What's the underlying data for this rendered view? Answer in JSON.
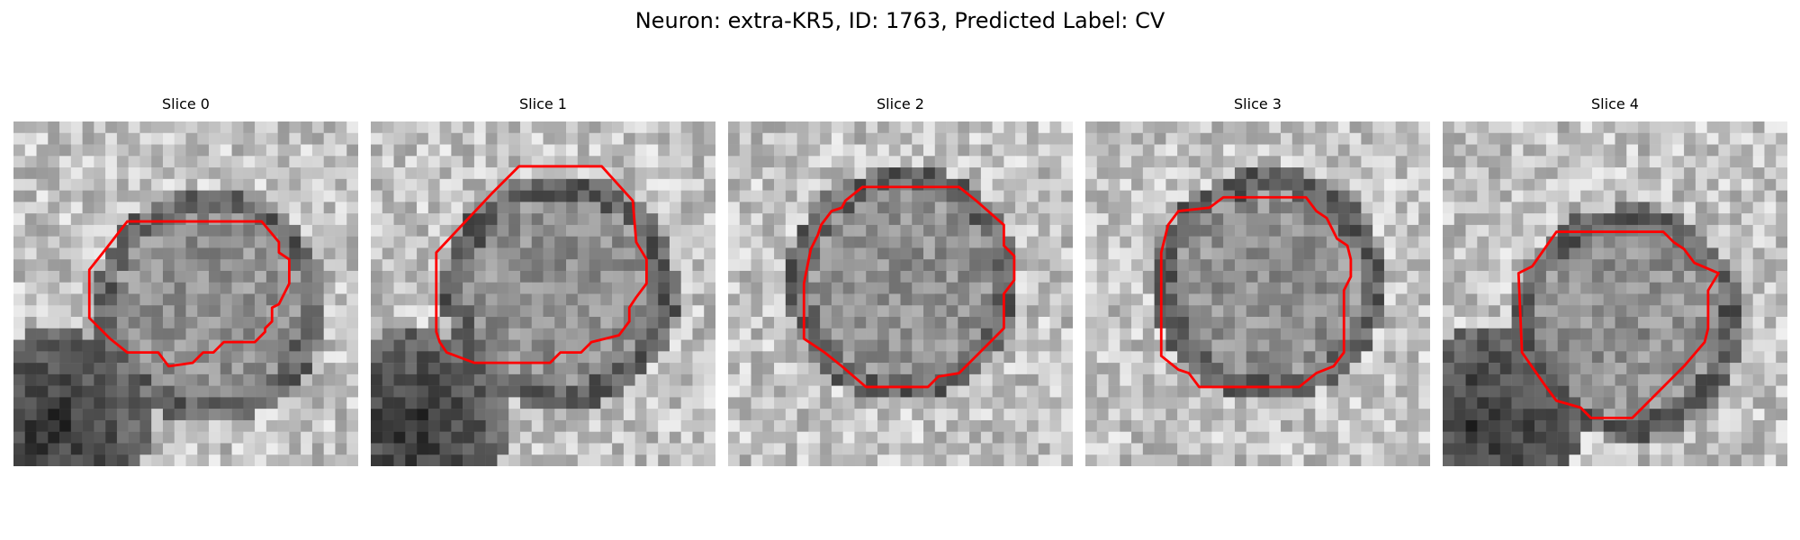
{
  "figure": {
    "title": "Neuron: extra-KR5, ID: 1763, Predicted Label: CV",
    "contour_color": "#ff0000",
    "image_colormap": "gray"
  },
  "panels": [
    {
      "title": "Slice 0",
      "seed": 11,
      "dark_lower_left": true,
      "contour": [
        [
          0.33,
          0.29
        ],
        [
          0.72,
          0.29
        ],
        [
          0.77,
          0.35
        ],
        [
          0.77,
          0.38
        ],
        [
          0.8,
          0.4
        ],
        [
          0.8,
          0.47
        ],
        [
          0.77,
          0.53
        ],
        [
          0.75,
          0.54
        ],
        [
          0.75,
          0.58
        ],
        [
          0.73,
          0.6
        ],
        [
          0.73,
          0.61
        ],
        [
          0.7,
          0.64
        ],
        [
          0.61,
          0.64
        ],
        [
          0.58,
          0.67
        ],
        [
          0.55,
          0.67
        ],
        [
          0.52,
          0.7
        ],
        [
          0.45,
          0.71
        ],
        [
          0.42,
          0.67
        ],
        [
          0.33,
          0.67
        ],
        [
          0.28,
          0.63
        ],
        [
          0.22,
          0.57
        ],
        [
          0.22,
          0.43
        ],
        [
          0.26,
          0.38
        ]
      ]
    },
    {
      "title": "Slice 1",
      "seed": 23,
      "dark_lower_left": true,
      "contour": [
        [
          0.43,
          0.13
        ],
        [
          0.67,
          0.13
        ],
        [
          0.76,
          0.23
        ],
        [
          0.77,
          0.35
        ],
        [
          0.8,
          0.4
        ],
        [
          0.8,
          0.47
        ],
        [
          0.77,
          0.51
        ],
        [
          0.75,
          0.54
        ],
        [
          0.75,
          0.58
        ],
        [
          0.72,
          0.62
        ],
        [
          0.64,
          0.64
        ],
        [
          0.61,
          0.67
        ],
        [
          0.55,
          0.67
        ],
        [
          0.52,
          0.7
        ],
        [
          0.3,
          0.7
        ],
        [
          0.22,
          0.67
        ],
        [
          0.2,
          0.64
        ],
        [
          0.19,
          0.61
        ],
        [
          0.19,
          0.38
        ],
        [
          0.35,
          0.21
        ]
      ]
    },
    {
      "title": "Slice 2",
      "seed": 37,
      "dark_lower_left": false,
      "contour": [
        [
          0.39,
          0.19
        ],
        [
          0.67,
          0.19
        ],
        [
          0.72,
          0.23
        ],
        [
          0.8,
          0.3
        ],
        [
          0.8,
          0.36
        ],
        [
          0.83,
          0.39
        ],
        [
          0.83,
          0.46
        ],
        [
          0.8,
          0.5
        ],
        [
          0.8,
          0.6
        ],
        [
          0.76,
          0.64
        ],
        [
          0.67,
          0.73
        ],
        [
          0.61,
          0.74
        ],
        [
          0.58,
          0.77
        ],
        [
          0.4,
          0.77
        ],
        [
          0.33,
          0.71
        ],
        [
          0.28,
          0.67
        ],
        [
          0.25,
          0.65
        ],
        [
          0.22,
          0.63
        ],
        [
          0.22,
          0.47
        ],
        [
          0.24,
          0.37
        ],
        [
          0.26,
          0.33
        ],
        [
          0.27,
          0.3
        ],
        [
          0.3,
          0.26
        ],
        [
          0.33,
          0.25
        ],
        [
          0.34,
          0.23
        ]
      ]
    },
    {
      "title": "Slice 3",
      "seed": 53,
      "dark_lower_left": false,
      "contour": [
        [
          0.4,
          0.22
        ],
        [
          0.64,
          0.22
        ],
        [
          0.67,
          0.26
        ],
        [
          0.7,
          0.28
        ],
        [
          0.73,
          0.34
        ],
        [
          0.76,
          0.36
        ],
        [
          0.77,
          0.4
        ],
        [
          0.77,
          0.45
        ],
        [
          0.75,
          0.49
        ],
        [
          0.75,
          0.67
        ],
        [
          0.72,
          0.71
        ],
        [
          0.67,
          0.73
        ],
        [
          0.62,
          0.77
        ],
        [
          0.33,
          0.77
        ],
        [
          0.3,
          0.73
        ],
        [
          0.27,
          0.72
        ],
        [
          0.22,
          0.68
        ],
        [
          0.22,
          0.38
        ],
        [
          0.24,
          0.3
        ],
        [
          0.27,
          0.26
        ],
        [
          0.36,
          0.25
        ]
      ]
    },
    {
      "title": "Slice 4",
      "seed": 71,
      "dark_lower_left": true,
      "contour": [
        [
          0.33,
          0.32
        ],
        [
          0.64,
          0.32
        ],
        [
          0.67,
          0.35
        ],
        [
          0.7,
          0.37
        ],
        [
          0.73,
          0.41
        ],
        [
          0.8,
          0.44
        ],
        [
          0.77,
          0.49
        ],
        [
          0.77,
          0.6
        ],
        [
          0.76,
          0.64
        ],
        [
          0.7,
          0.71
        ],
        [
          0.58,
          0.83
        ],
        [
          0.55,
          0.86
        ],
        [
          0.43,
          0.86
        ],
        [
          0.4,
          0.83
        ],
        [
          0.33,
          0.81
        ],
        [
          0.3,
          0.77
        ],
        [
          0.23,
          0.67
        ],
        [
          0.22,
          0.44
        ],
        [
          0.26,
          0.42
        ]
      ]
    }
  ]
}
